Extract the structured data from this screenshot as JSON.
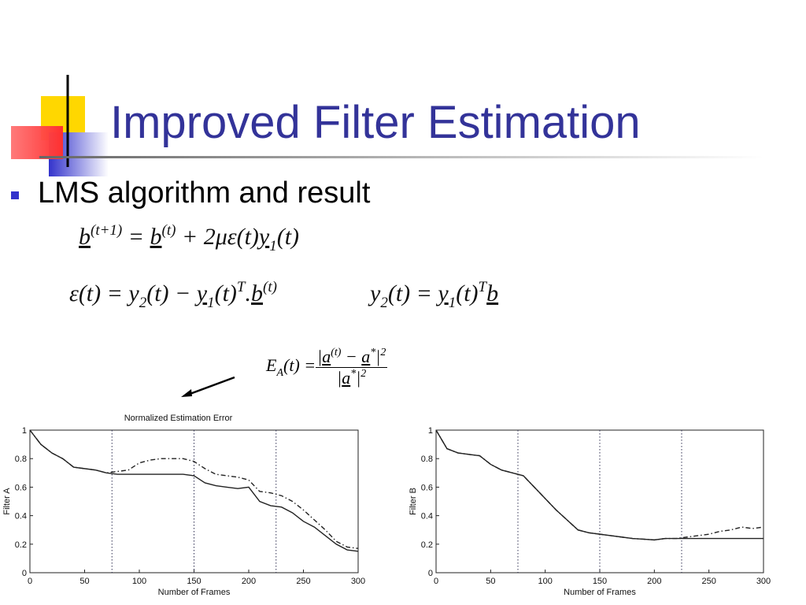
{
  "title": "Improved Filter Estimation",
  "bullet": "LMS algorithm and result",
  "equations": [
    [
      {
        "u": "b"
      },
      {
        "sup": "(t+1)"
      },
      {
        "t": " = "
      },
      {
        "u": "b"
      },
      {
        "sup": "(t)"
      },
      {
        "t": " + 2με(t)"
      },
      {
        "u": "y"
      },
      {
        "sub": "1"
      },
      {
        "t": "(t)"
      }
    ],
    [
      {
        "t": "ε(t) = y"
      },
      {
        "sub": "2"
      },
      {
        "t": "(t) − "
      },
      {
        "u": "y"
      },
      {
        "sub": "1"
      },
      {
        "t": "(t)"
      },
      {
        "sup": "T"
      },
      {
        "t": "."
      },
      {
        "u": "b"
      },
      {
        "sup": "(t)"
      }
    ],
    [
      {
        "t": "y"
      },
      {
        "sub": "2"
      },
      {
        "t": "(t) = "
      },
      {
        "u": "y"
      },
      {
        "sub": "1"
      },
      {
        "t": "(t)"
      },
      {
        "sup": "T"
      },
      {
        "u": "b"
      }
    ]
  ],
  "error_formula": {
    "lhs": [
      {
        "t": "E"
      },
      {
        "sub": "A"
      },
      {
        "t": "(t) = "
      }
    ],
    "num": [
      {
        "t": "|"
      },
      {
        "u": "a"
      },
      {
        "sup": "(t)"
      },
      {
        "t": " − "
      },
      {
        "u": "a"
      },
      {
        "sup": "*"
      },
      {
        "t": "|"
      },
      {
        "sup": "2"
      }
    ],
    "den": [
      {
        "t": "|"
      },
      {
        "u": "a"
      },
      {
        "sup": "*"
      },
      {
        "t": "|"
      },
      {
        "sup": "2"
      }
    ]
  },
  "chart_data": [
    {
      "type": "line",
      "title": "Normalized Estimation Error",
      "x_label": "Number of Frames",
      "y_label": "Filter A",
      "x": [
        0,
        10,
        20,
        30,
        40,
        50,
        60,
        70,
        80,
        90,
        100,
        110,
        120,
        130,
        140,
        150,
        160,
        170,
        180,
        190,
        200,
        210,
        220,
        230,
        240,
        250,
        260,
        270,
        280,
        290,
        300
      ],
      "series": [
        {
          "color": "#222222",
          "style": "solid",
          "values": [
            1,
            0.9,
            0.84,
            0.8,
            0.74,
            0.73,
            0.72,
            0.7,
            0.69,
            0.69,
            0.69,
            0.69,
            0.69,
            0.69,
            0.69,
            0.68,
            0.63,
            0.61,
            0.6,
            0.59,
            0.6,
            0.5,
            0.47,
            0.46,
            0.42,
            0.36,
            0.32,
            0.26,
            0.2,
            0.16,
            0.15
          ]
        },
        {
          "color": "#222222",
          "style": "dashdot",
          "values": [
            1,
            0.9,
            0.84,
            0.8,
            0.74,
            0.73,
            0.72,
            0.7,
            0.71,
            0.72,
            0.77,
            0.79,
            0.8,
            0.8,
            0.8,
            0.78,
            0.73,
            0.69,
            0.68,
            0.67,
            0.65,
            0.57,
            0.56,
            0.54,
            0.5,
            0.44,
            0.37,
            0.3,
            0.22,
            0.18,
            0.17
          ]
        }
      ],
      "vlines": [
        75,
        150,
        225
      ],
      "xlim": [
        0,
        300
      ],
      "xticks": [
        0,
        50,
        100,
        150,
        200,
        250,
        300
      ],
      "ylim": [
        0,
        1
      ],
      "yticks": [
        0,
        0.2,
        0.4,
        0.6,
        0.8,
        1
      ]
    },
    {
      "type": "line",
      "x_label": "Number of Frames",
      "y_label": "Filter B",
      "x": [
        0,
        10,
        20,
        30,
        40,
        50,
        60,
        70,
        80,
        90,
        100,
        110,
        120,
        130,
        140,
        150,
        160,
        170,
        180,
        190,
        200,
        210,
        220,
        230,
        240,
        250,
        260,
        270,
        280,
        290,
        300
      ],
      "series": [
        {
          "color": "#222222",
          "style": "solid",
          "values": [
            1,
            0.87,
            0.84,
            0.83,
            0.82,
            0.76,
            0.72,
            0.7,
            0.68,
            0.6,
            0.52,
            0.44,
            0.37,
            0.3,
            0.28,
            0.27,
            0.26,
            0.25,
            0.24,
            0.235,
            0.23,
            0.24,
            0.24,
            0.24,
            0.24,
            0.24,
            0.24,
            0.24,
            0.24,
            0.24,
            0.24
          ]
        },
        {
          "color": "#222222",
          "style": "dashdot",
          "values": [
            1,
            0.87,
            0.84,
            0.83,
            0.82,
            0.76,
            0.72,
            0.7,
            0.68,
            0.6,
            0.52,
            0.44,
            0.37,
            0.3,
            0.28,
            0.27,
            0.26,
            0.25,
            0.24,
            0.235,
            0.23,
            0.24,
            0.24,
            0.25,
            0.26,
            0.27,
            0.29,
            0.3,
            0.32,
            0.31,
            0.32
          ]
        }
      ],
      "vlines": [
        75,
        150,
        225
      ],
      "xlim": [
        0,
        300
      ],
      "xticks": [
        0,
        50,
        100,
        150,
        200,
        250,
        300
      ],
      "ylim": [
        0,
        1
      ],
      "yticks": [
        0,
        0.2,
        0.4,
        0.6,
        0.8,
        1
      ]
    }
  ]
}
